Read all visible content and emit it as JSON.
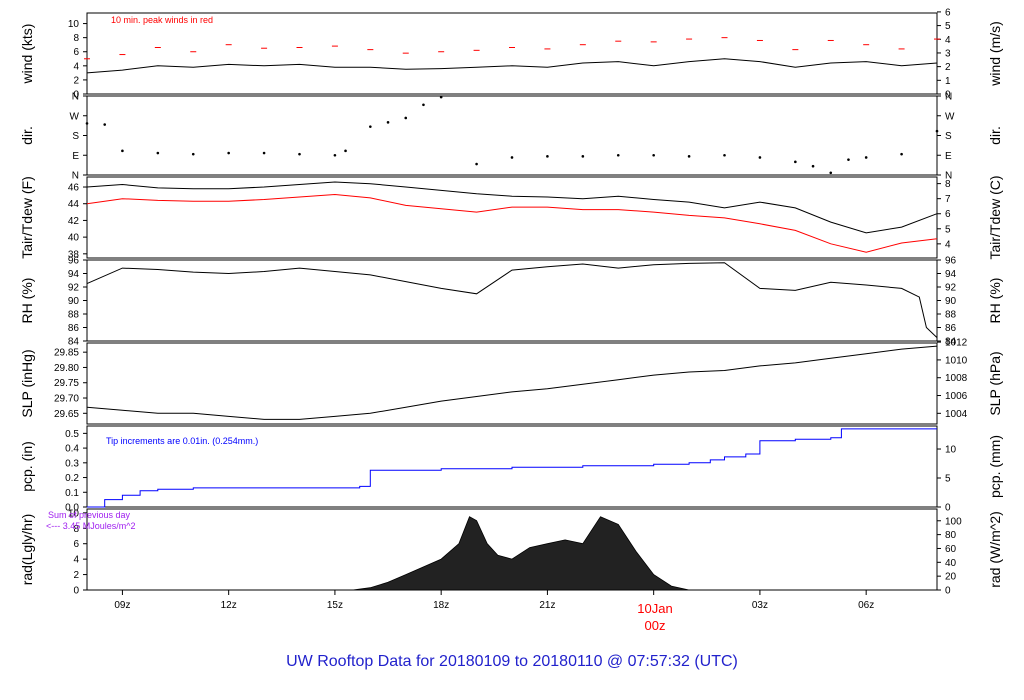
{
  "title": "UW Rooftop Data for 20180109  to  20180110 @ 07:57:32  (UTC)",
  "colors": {
    "title": "#2222cc",
    "peak": "#ff0000",
    "tdew": "#ff0000",
    "pcp": "#0000ff",
    "rad_note": "#a020f0",
    "axis": "#000000",
    "date_label": "#ff0000"
  },
  "x_axis": {
    "ticks": [
      "09z",
      "12z",
      "15z",
      "18z",
      "21z",
      "00z",
      "03z",
      "06z"
    ],
    "date_label": "10Jan",
    "date_tick": "00z"
  },
  "panels": {
    "wind": {
      "left_label": "wind (kts)",
      "right_label": "wind (m/s)",
      "note": "10 min. peak winds in red",
      "left_ticks": [
        "0",
        "2",
        "4",
        "6",
        "8",
        "10"
      ],
      "right_ticks": [
        "0",
        "1",
        "2",
        "3",
        "4",
        "5",
        "6"
      ]
    },
    "dir": {
      "left_label": "dir.",
      "right_label": "dir.",
      "ticks": [
        "N",
        "E",
        "S",
        "W",
        "N"
      ]
    },
    "temp": {
      "left_label": "Tair/Tdew (F)",
      "right_label": "Tair/Tdew (C)",
      "left_ticks": [
        "38",
        "40",
        "42",
        "44",
        "46"
      ],
      "right_ticks": [
        "4",
        "5",
        "6",
        "7",
        "8"
      ]
    },
    "rh": {
      "left_label": "RH (%)",
      "right_label": "RH (%)",
      "left_ticks": [
        "84",
        "86",
        "88",
        "90",
        "92",
        "94",
        "96"
      ],
      "right_ticks": [
        "84",
        "86",
        "88",
        "90",
        "92",
        "94",
        "96"
      ]
    },
    "slp": {
      "left_label": "SLP (inHg)",
      "right_label": "SLP (hPa)",
      "left_ticks": [
        "29.65",
        "29.70",
        "29.75",
        "29.80",
        "29.85"
      ],
      "right_ticks": [
        "1004",
        "1006",
        "1008",
        "1010",
        "1012"
      ]
    },
    "pcp": {
      "left_label": "pcp. (in)",
      "right_label": "pcp. (mm)",
      "note": "Tip increments are 0.01in. (0.254mm.)",
      "left_ticks": [
        "0.0",
        "0.1",
        "0.2",
        "0.3",
        "0.4",
        "0.5"
      ],
      "right_ticks": [
        "0",
        "5",
        "10"
      ]
    },
    "rad": {
      "left_label": "rad(Lgly/hr)",
      "right_label": "rad (W/m^2)",
      "note1": "Sum of previous day",
      "note2": "<--- 3.45 MJoules/m^2",
      "left_ticks": [
        "0",
        "2",
        "4",
        "6",
        "8",
        "10"
      ],
      "right_ticks": [
        "0",
        "20",
        "40",
        "60",
        "80",
        "100"
      ]
    }
  },
  "chart_data": {
    "type": "line",
    "x_unit": "hours UTC since 2018-01-09 00z",
    "x_range": [
      8,
      32
    ],
    "series": [
      {
        "key": "wind_avg",
        "unit": "kts",
        "x": [
          8,
          9,
          10,
          11,
          12,
          13,
          14,
          15,
          16,
          17,
          18,
          19,
          20,
          21,
          22,
          23,
          24,
          25,
          26,
          27,
          28,
          29,
          30,
          31,
          32
        ],
        "y": [
          3.0,
          3.4,
          4.0,
          3.8,
          4.2,
          4.0,
          4.2,
          3.8,
          3.8,
          3.5,
          3.6,
          3.8,
          4.0,
          3.8,
          4.4,
          4.6,
          4.0,
          4.6,
          5.0,
          4.6,
          3.8,
          4.4,
          4.6,
          4.0,
          4.4
        ]
      },
      {
        "key": "wind_peak",
        "unit": "kts",
        "x": [
          8,
          9,
          10,
          11,
          12,
          13,
          14,
          15,
          16,
          17,
          18,
          19,
          20,
          21,
          22,
          23,
          24,
          25,
          26,
          27,
          28,
          29,
          30,
          31,
          32
        ],
        "y": [
          5.0,
          5.6,
          6.6,
          6.0,
          7.0,
          6.5,
          6.6,
          6.8,
          6.3,
          5.8,
          6.0,
          6.2,
          6.6,
          6.4,
          7.0,
          7.5,
          7.4,
          7.8,
          8.0,
          7.6,
          6.3,
          7.6,
          7.0,
          6.4,
          7.8
        ]
      },
      {
        "key": "wind_dir",
        "unit": "deg",
        "x": [
          8,
          8.5,
          9,
          10,
          11,
          12,
          13,
          14,
          15,
          15.3,
          16,
          16.5,
          17,
          17.5,
          18,
          19,
          20,
          21,
          22,
          23,
          24,
          25,
          26,
          27,
          28,
          28.5,
          29,
          29.5,
          30,
          31,
          32
        ],
        "y": [
          235,
          230,
          110,
          100,
          95,
          100,
          100,
          95,
          90,
          110,
          220,
          240,
          260,
          320,
          355,
          50,
          80,
          85,
          85,
          90,
          90,
          85,
          90,
          80,
          60,
          40,
          10,
          70,
          80,
          95,
          200
        ]
      },
      {
        "key": "tair",
        "unit": "F",
        "x": [
          8,
          9,
          10,
          11,
          12,
          13,
          14,
          15,
          16,
          17,
          18,
          19,
          20,
          21,
          22,
          23,
          24,
          25,
          26,
          27,
          28,
          29,
          30,
          31,
          32
        ],
        "y": [
          46.0,
          46.3,
          45.9,
          45.8,
          45.8,
          46.0,
          46.3,
          46.6,
          46.4,
          46.0,
          45.6,
          45.2,
          44.9,
          44.8,
          44.6,
          44.9,
          44.5,
          44.2,
          43.5,
          44.2,
          43.5,
          41.8,
          40.5,
          41.2,
          42.8
        ]
      },
      {
        "key": "tdew",
        "unit": "F",
        "x": [
          8,
          9,
          10,
          11,
          12,
          13,
          14,
          15,
          16,
          17,
          18,
          19,
          20,
          21,
          22,
          23,
          24,
          25,
          26,
          27,
          28,
          29,
          30,
          31,
          32
        ],
        "y": [
          44.0,
          44.6,
          44.4,
          44.3,
          44.3,
          44.5,
          44.8,
          45.1,
          44.7,
          43.8,
          43.4,
          43.0,
          43.6,
          43.6,
          43.3,
          43.3,
          43.0,
          42.6,
          42.3,
          41.6,
          40.8,
          39.2,
          38.2,
          39.3,
          39.8
        ]
      },
      {
        "key": "rh",
        "unit": "%",
        "x": [
          8,
          9,
          10,
          11,
          12,
          13,
          14,
          15,
          16,
          17,
          18,
          19,
          20,
          21,
          22,
          23,
          24,
          25,
          26,
          27,
          28,
          29,
          30,
          31,
          31.5,
          31.7,
          32
        ],
        "y": [
          92.5,
          94.8,
          94.6,
          94.2,
          94.0,
          94.3,
          94.8,
          94.3,
          93.8,
          92.8,
          91.8,
          91.0,
          94.5,
          95.0,
          95.4,
          94.8,
          95.3,
          95.5,
          95.6,
          91.8,
          91.5,
          92.7,
          92.3,
          91.8,
          90.5,
          86.0,
          84.5
        ]
      },
      {
        "key": "slp",
        "unit": "inHg",
        "x": [
          8,
          9,
          10,
          11,
          12,
          13,
          14,
          15,
          16,
          17,
          18,
          19,
          20,
          21,
          22,
          23,
          24,
          25,
          26,
          27,
          28,
          29,
          30,
          31,
          32
        ],
        "y": [
          29.67,
          29.66,
          29.65,
          29.65,
          29.64,
          29.63,
          29.63,
          29.64,
          29.65,
          29.67,
          29.69,
          29.705,
          29.72,
          29.73,
          29.745,
          29.76,
          29.775,
          29.785,
          29.79,
          29.805,
          29.815,
          29.83,
          29.845,
          29.86,
          29.87
        ]
      },
      {
        "key": "pcp",
        "unit": "in",
        "x": [
          8,
          8.5,
          9,
          9.5,
          10,
          11,
          12,
          13,
          14,
          15,
          15.7,
          16,
          18,
          20,
          22,
          24,
          25,
          25.6,
          26,
          26.6,
          27,
          28,
          29,
          29.3,
          30,
          31,
          32
        ],
        "y": [
          0.0,
          0.05,
          0.08,
          0.11,
          0.12,
          0.13,
          0.13,
          0.13,
          0.13,
          0.13,
          0.14,
          0.25,
          0.26,
          0.27,
          0.28,
          0.29,
          0.3,
          0.32,
          0.34,
          0.36,
          0.45,
          0.46,
          0.47,
          0.53,
          0.53,
          0.53,
          0.53
        ]
      },
      {
        "key": "rad",
        "unit": "Lgly/hr",
        "x": [
          15.5,
          16,
          16.5,
          17,
          17.5,
          18,
          18.5,
          18.8,
          19,
          19.3,
          19.6,
          20,
          20.5,
          21,
          21.5,
          22,
          22.5,
          23,
          23.5,
          24,
          24.5,
          25
        ],
        "y": [
          0,
          0.3,
          1,
          2,
          3,
          4,
          6,
          9.5,
          9,
          6,
          4.5,
          4,
          5.5,
          6,
          6.5,
          6,
          9.5,
          8.5,
          5,
          2,
          0.5,
          0
        ]
      }
    ]
  }
}
